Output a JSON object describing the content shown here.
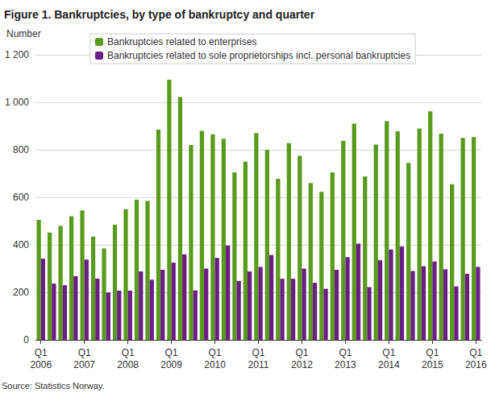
{
  "chart_data": {
    "type": "bar",
    "title": "Figure 1. Bankruptcies, by type of bankruptcy and quarter",
    "ylabel": "Number",
    "annotations": [
      "Source: Statistics Norway."
    ],
    "categories": [
      "Q1\n2006",
      null,
      null,
      null,
      "Q1\n2007",
      null,
      null,
      null,
      "Q1\n2008",
      null,
      null,
      null,
      "Q1\n2009",
      null,
      null,
      null,
      "Q1\n2010",
      null,
      null,
      null,
      "Q1\n2011",
      null,
      null,
      null,
      "Q1\n2012",
      null,
      null,
      null,
      "Q1\n2013",
      null,
      null,
      null,
      "Q1\n2014",
      null,
      null,
      null,
      "Q1\n2015",
      null,
      null,
      null,
      "Q1\n2016"
    ],
    "series": [
      {
        "name": "Bankruptcies related to enterprises",
        "color": "#5a9b1e",
        "values": [
          505,
          452,
          480,
          520,
          545,
          435,
          385,
          485,
          550,
          590,
          585,
          885,
          1095,
          1022,
          820,
          880,
          865,
          847,
          705,
          750,
          870,
          800,
          678,
          828,
          775,
          660,
          623,
          705,
          838,
          910,
          688,
          822,
          920,
          878,
          745,
          890,
          962,
          868,
          655,
          850,
          853
        ]
      },
      {
        "name": "Bankruptcies related to sole proprietorships incl. personal bankruptcies",
        "color": "#6b1d86",
        "values": [
          342,
          237,
          230,
          268,
          338,
          258,
          200,
          207,
          207,
          288,
          253,
          295,
          325,
          360,
          208,
          300,
          345,
          397,
          248,
          288,
          307,
          357,
          257,
          257,
          300,
          240,
          215,
          295,
          348,
          405,
          222,
          335,
          380,
          393,
          290,
          310,
          330,
          297,
          225,
          278,
          307
        ]
      }
    ],
    "ylim": [
      0,
      1200
    ],
    "yticks": [
      0,
      200,
      400,
      600,
      800,
      {
        "value": 1000,
        "label": "1 000"
      },
      {
        "value": 1200,
        "label": "1 200"
      }
    ],
    "grid": true,
    "legend": "top"
  }
}
